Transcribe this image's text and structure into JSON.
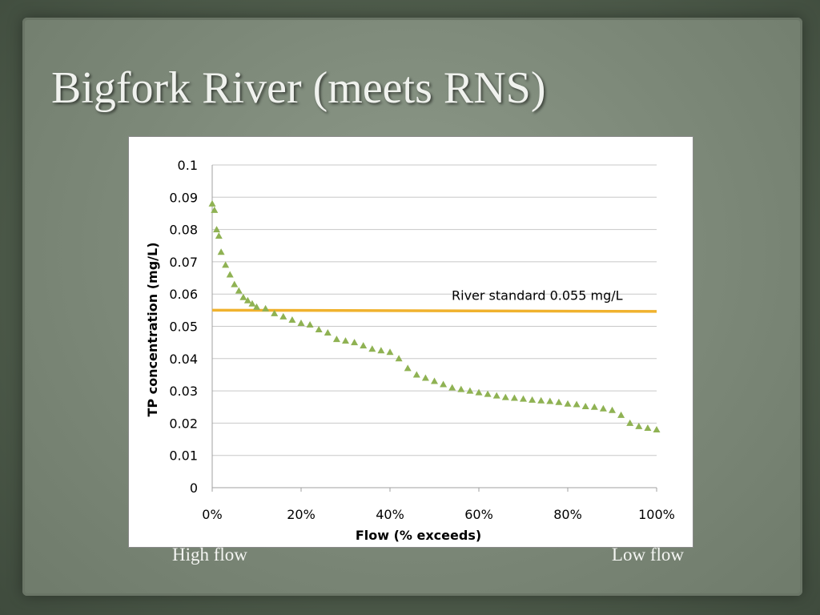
{
  "slide": {
    "title": "Bigfork River (meets RNS)",
    "left_caption": "High flow",
    "right_caption": "Low flow"
  },
  "chart_data": {
    "type": "scatter",
    "xlabel": "Flow  (% exceeds)",
    "ylabel": "TP concentration (mg/L)",
    "xlim": [
      0,
      100
    ],
    "ylim": [
      0,
      0.1
    ],
    "x_ticks": [
      "0%",
      "20%",
      "40%",
      "60%",
      "80%",
      "100%"
    ],
    "y_ticks": [
      "0",
      "0.01",
      "0.02",
      "0.03",
      "0.04",
      "0.05",
      "0.06",
      "0.07",
      "0.08",
      "0.09",
      "0.1"
    ],
    "grid": "horizontal",
    "series": [
      {
        "marker": "triangle",
        "color": "#8fb253",
        "points": [
          [
            0,
            0.088
          ],
          [
            0.5,
            0.086
          ],
          [
            1,
            0.08
          ],
          [
            1.5,
            0.078
          ],
          [
            2,
            0.073
          ],
          [
            3,
            0.069
          ],
          [
            4,
            0.066
          ],
          [
            5,
            0.063
          ],
          [
            6,
            0.061
          ],
          [
            7,
            0.059
          ],
          [
            8,
            0.058
          ],
          [
            9,
            0.057
          ],
          [
            10,
            0.056
          ],
          [
            12,
            0.0555
          ],
          [
            14,
            0.054
          ],
          [
            16,
            0.053
          ],
          [
            18,
            0.052
          ],
          [
            20,
            0.051
          ],
          [
            22,
            0.0505
          ],
          [
            24,
            0.049
          ],
          [
            26,
            0.048
          ],
          [
            28,
            0.046
          ],
          [
            30,
            0.0455
          ],
          [
            32,
            0.045
          ],
          [
            34,
            0.044
          ],
          [
            36,
            0.043
          ],
          [
            38,
            0.0425
          ],
          [
            40,
            0.042
          ],
          [
            42,
            0.04
          ],
          [
            44,
            0.037
          ],
          [
            46,
            0.035
          ],
          [
            48,
            0.034
          ],
          [
            50,
            0.033
          ],
          [
            52,
            0.032
          ],
          [
            54,
            0.031
          ],
          [
            56,
            0.0305
          ],
          [
            58,
            0.03
          ],
          [
            60,
            0.0295
          ],
          [
            62,
            0.029
          ],
          [
            64,
            0.0285
          ],
          [
            66,
            0.028
          ],
          [
            68,
            0.0278
          ],
          [
            70,
            0.0275
          ],
          [
            72,
            0.0272
          ],
          [
            74,
            0.027
          ],
          [
            76,
            0.0268
          ],
          [
            78,
            0.0265
          ],
          [
            80,
            0.026
          ],
          [
            82,
            0.0258
          ],
          [
            84,
            0.0252
          ],
          [
            86,
            0.025
          ],
          [
            88,
            0.0245
          ],
          [
            90,
            0.024
          ],
          [
            92,
            0.0225
          ],
          [
            94,
            0.02
          ],
          [
            96,
            0.019
          ],
          [
            98,
            0.0185
          ],
          [
            100,
            0.018
          ]
        ]
      }
    ],
    "reference_line": {
      "y": 0.055,
      "color": "#f0b22e",
      "label": "River standard 0.055 mg/L"
    }
  }
}
